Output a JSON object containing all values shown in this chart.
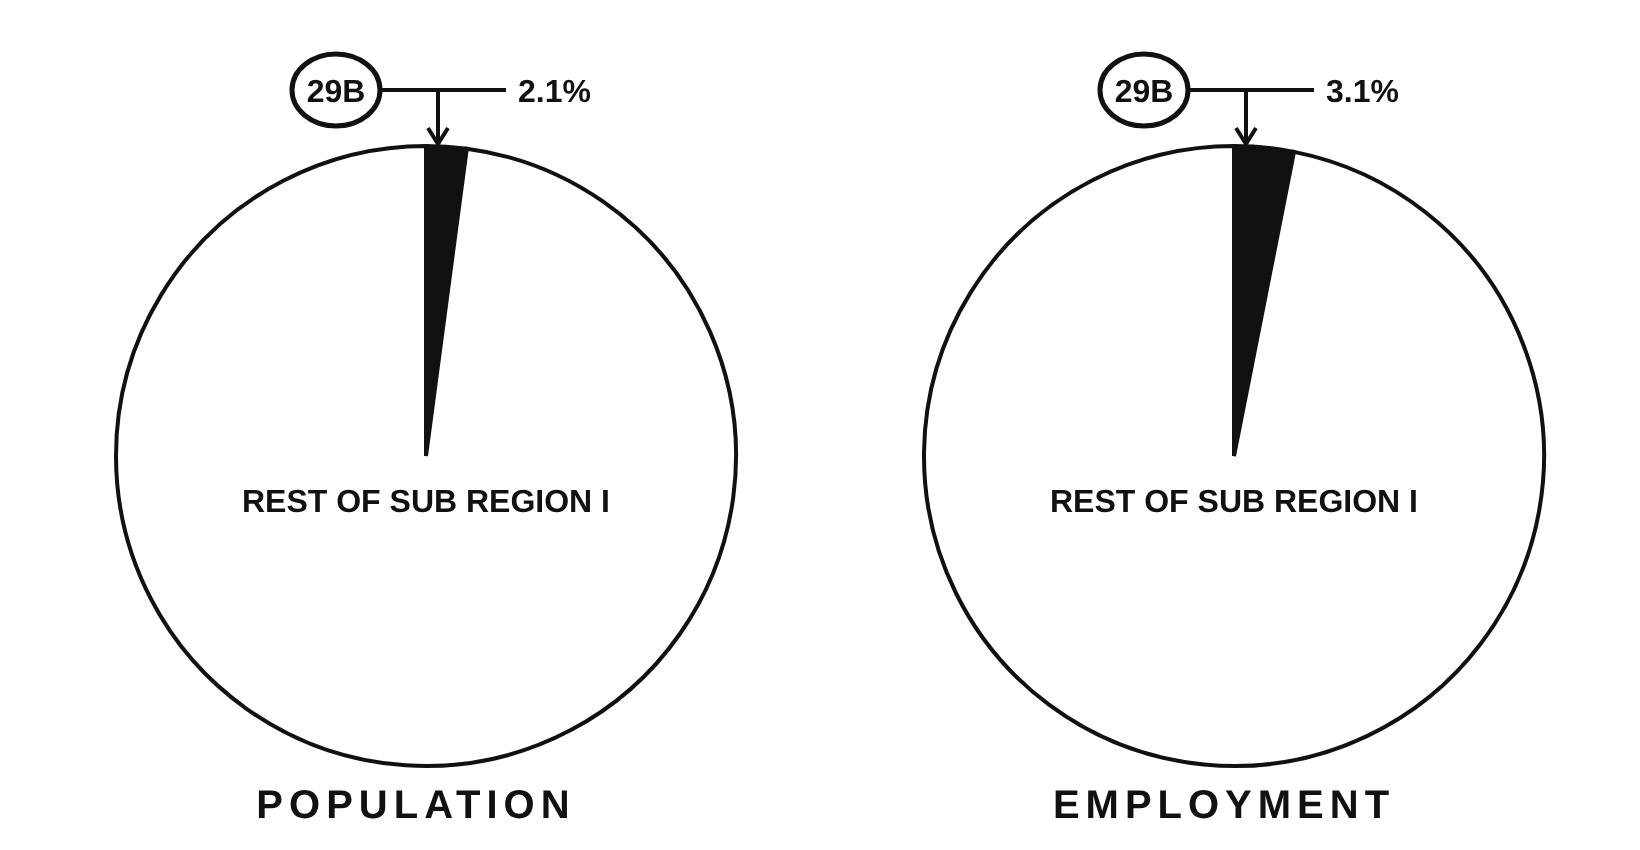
{
  "chart_data": [
    {
      "type": "pie",
      "title": "POPULATION",
      "categories": [
        "29B",
        "REST OF SUB REGION I"
      ],
      "values": [
        2.1,
        97.9
      ],
      "colors": [
        "#111111",
        "#ffffff"
      ],
      "value_labels": [
        "2.1%",
        null
      ]
    },
    {
      "type": "pie",
      "title": "EMPLOYMENT",
      "categories": [
        "29B",
        "REST OF SUB REGION I"
      ],
      "values": [
        3.1,
        96.9
      ],
      "colors": [
        "#111111",
        "#ffffff"
      ],
      "value_labels": [
        "3.1%",
        null
      ]
    }
  ]
}
